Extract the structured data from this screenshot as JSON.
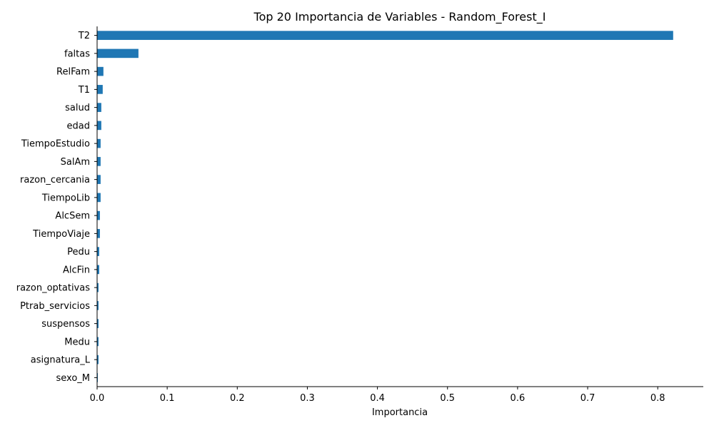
{
  "chart_data": {
    "type": "bar",
    "orientation": "horizontal",
    "title": "Top 20 Importancia de Variables - Random_Forest_I",
    "xlabel": "Importancia",
    "ylabel": "",
    "xlim": [
      0,
      0.865
    ],
    "xticks": [
      "0.0",
      "0.1",
      "0.2",
      "0.3",
      "0.4",
      "0.5",
      "0.6",
      "0.7",
      "0.8"
    ],
    "grid": false,
    "bar_color": "#1f77b4",
    "categories": [
      "T2",
      "faltas",
      "RelFam",
      "T1",
      "salud",
      "edad",
      "TiempoEstudio",
      "SalAm",
      "razon_cercania",
      "TiempoLib",
      "AlcSem",
      "TiempoViaje",
      "Pedu",
      "AlcFin",
      "razon_optativas",
      "Ptrab_servicios",
      "suspensos",
      "Medu",
      "asignatura_L",
      "sexo_M"
    ],
    "values": [
      0.822,
      0.059,
      0.009,
      0.008,
      0.006,
      0.006,
      0.005,
      0.005,
      0.005,
      0.005,
      0.004,
      0.004,
      0.003,
      0.003,
      0.002,
      0.002,
      0.002,
      0.002,
      0.002,
      0.001
    ]
  }
}
